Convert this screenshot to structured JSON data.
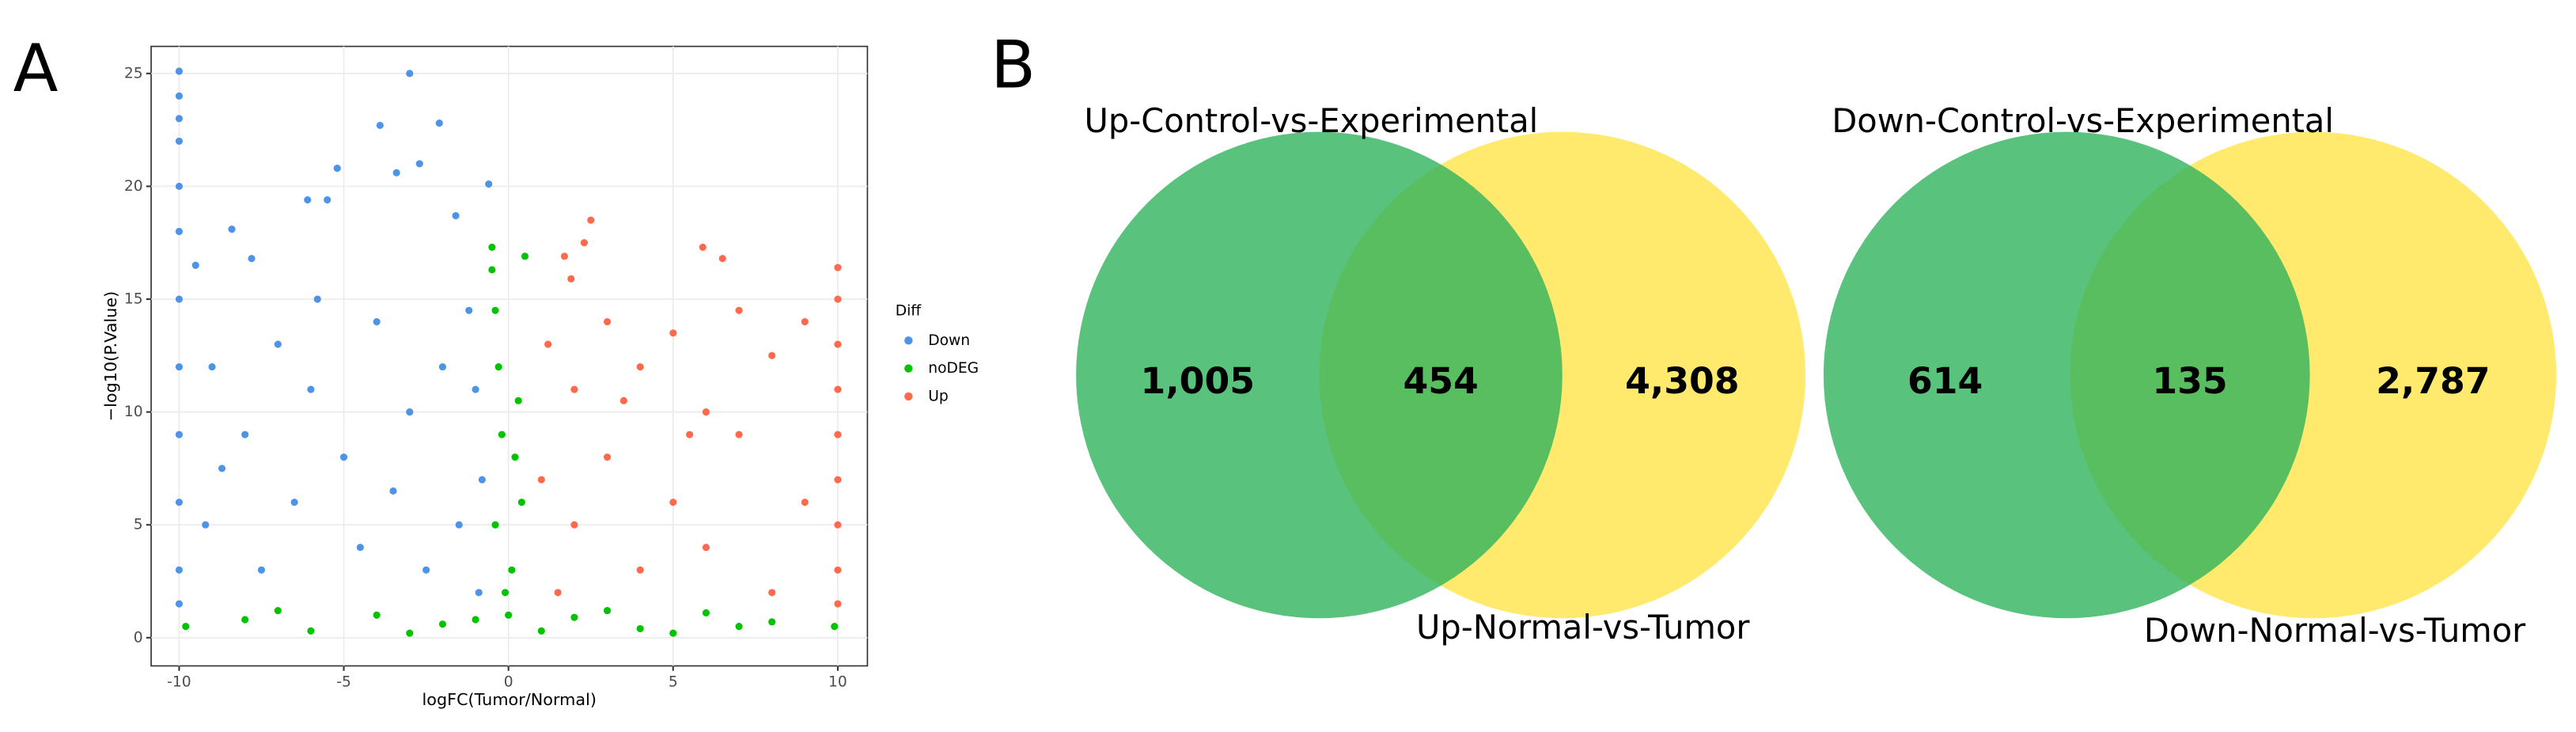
{
  "chart_data": [
    {
      "type": "scatter",
      "panel_label": "A",
      "x_label": "logFC(Tumor/Normal)",
      "y_label": "−log10(P.Value)",
      "legend_title": "Diff",
      "legend": "right",
      "grid": true,
      "xlim": [
        -10.85,
        10.9
      ],
      "ylim": [
        -1.25,
        26.2
      ],
      "xticks": [
        -10,
        -5,
        0,
        5,
        10
      ],
      "yticks": [
        0,
        5,
        10,
        15,
        20,
        25
      ],
      "series": [
        {
          "name": "Down",
          "color": "#4d94e8",
          "x": [
            -10,
            -10,
            -10,
            -10,
            -10,
            -10,
            -10,
            -10,
            -10,
            -10,
            -10,
            -10,
            -9.5,
            -8.4,
            -7.8,
            -6.1,
            -5.5,
            -5.2,
            -3.9,
            -3.4,
            -3.0,
            -2.7,
            -2.1,
            -1.6,
            -0.6,
            -9,
            -8,
            -7,
            -6,
            -5,
            -4,
            -3,
            -2,
            -1,
            -0.8,
            -9.2,
            -7.5,
            -6.5,
            -4.5,
            -3.5,
            -2.5,
            -1.5,
            -0.9,
            -5.8,
            -8.7,
            -1.2
          ],
          "values": [
            25.1,
            24,
            23,
            22,
            20,
            18,
            15,
            12,
            9,
            6,
            3,
            1.5,
            16.5,
            18.1,
            16.8,
            19.4,
            19.4,
            20.8,
            22.7,
            20.6,
            25.0,
            21,
            22.8,
            18.7,
            20.1,
            12,
            9,
            13,
            11,
            8,
            14,
            10,
            12,
            11,
            7,
            5,
            3,
            6,
            4,
            6.5,
            3,
            5,
            2,
            15,
            7.5,
            14.5
          ]
        },
        {
          "name": "noDEG",
          "color": "#00c400",
          "x": [
            -0.5,
            -0.5,
            0.5,
            -0.4,
            -0.3,
            -0.2,
            0.2,
            0.4,
            -0.4,
            0.1,
            -0.1,
            0,
            -9.8,
            -8,
            -6,
            -4,
            -2,
            2,
            4,
            6,
            8,
            9.9,
            -7,
            3,
            5,
            7,
            -3,
            1,
            -1,
            0.3
          ],
          "values": [
            17.3,
            16.3,
            16.9,
            14.5,
            12,
            9,
            8,
            6,
            5,
            3,
            2,
            1,
            0.5,
            0.8,
            0.3,
            1.0,
            0.6,
            0.9,
            0.4,
            1.1,
            0.7,
            0.5,
            1.2,
            1.2,
            0.2,
            0.5,
            0.2,
            0.3,
            0.8,
            10.5
          ]
        },
        {
          "name": "Up",
          "color": "#ff6a4d",
          "x": [
            1.7,
            1.9,
            2.3,
            2.5,
            5.9,
            6.5,
            10,
            10,
            10,
            10,
            10,
            10,
            10,
            10,
            10,
            1.2,
            2,
            3,
            4,
            5,
            6,
            7,
            8,
            9,
            1,
            2,
            3,
            4,
            5,
            6,
            7,
            8,
            9,
            1.5,
            3.5,
            5.5
          ],
          "values": [
            16.9,
            15.9,
            17.5,
            18.5,
            17.3,
            16.8,
            16.4,
            15,
            13,
            11,
            9,
            7,
            5,
            3,
            1.5,
            13,
            11,
            14,
            12,
            13.5,
            10,
            14.5,
            12.5,
            14,
            7,
            5,
            8,
            3,
            6,
            4,
            9,
            2,
            6,
            2,
            10.5,
            9
          ]
        }
      ]
    },
    {
      "type": "venn",
      "panel_label": "B",
      "sets": [
        {
          "name": "Up-Control-vs-Experimental",
          "color": "#2fb35c"
        },
        {
          "name": "Up-Normal-vs-Tumor",
          "color": "#ffe33d"
        }
      ],
      "values": [
        1005,
        454,
        4308
      ],
      "value_labels": [
        "1,005",
        "454",
        "4,308"
      ]
    },
    {
      "type": "venn",
      "sets": [
        {
          "name": "Down-Control-vs-Experimental",
          "color": "#2fb35c"
        },
        {
          "name": "Down-Normal-vs-Tumor",
          "color": "#ffe33d"
        }
      ],
      "values": [
        614,
        135,
        2787
      ],
      "value_labels": [
        "614",
        "135",
        "2,787"
      ]
    }
  ]
}
